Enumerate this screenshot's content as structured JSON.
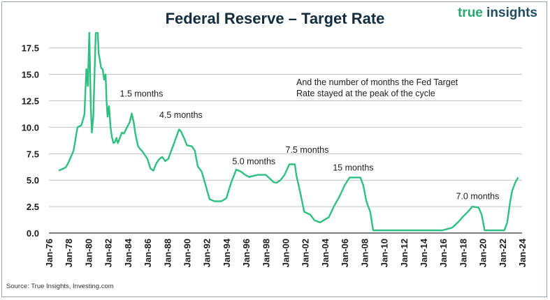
{
  "title": "Federal Reserve – Target Rate",
  "brand": {
    "part1": "true",
    "part2": "insights"
  },
  "source": "Source: True Insights, Investing.com",
  "note": "And the number of months the Fed Target Rate stayed at the peak of the cycle",
  "colors": {
    "line": "#2fbf7f",
    "grid": "#bcc5cc",
    "title": "#132c3d",
    "brand_green": "#2aa86f",
    "brand_dark": "#1f4e5e"
  },
  "chart_data": {
    "type": "line",
    "title": "Federal Reserve – Target Rate",
    "xlabel": "",
    "ylabel": "",
    "ylim": [
      0,
      19
    ],
    "xlim": [
      1976,
      2024
    ],
    "grid": true,
    "y_ticks": [
      "0.0",
      "2.5",
      "5.0",
      "7.5",
      "10.0",
      "12.5",
      "15.0",
      "17.5"
    ],
    "x_ticks": [
      "Jan-76",
      "Jan-78",
      "Jan-80",
      "Jan-82",
      "Jan-84",
      "Jan-86",
      "Jan-88",
      "Jan-90",
      "Jan-92",
      "Jan-94",
      "Jan-96",
      "Jan-98",
      "Jan-00",
      "Jan-02",
      "Jan-04",
      "Jan-06",
      "Jan-08",
      "Jan-10",
      "Jan-12",
      "Jan-14",
      "Jan-16",
      "Jan-18",
      "Jan-20",
      "Jan-22",
      "Jan-24"
    ],
    "annotations": [
      {
        "text": "1.5 months",
        "x": 1983.2,
        "y": 12.9
      },
      {
        "text": "4.5 months",
        "x": 1987.2,
        "y": 10.9
      },
      {
        "text": "5.0 months",
        "x": 1994.6,
        "y": 6.5
      },
      {
        "text": "7.5 months",
        "x": 2000.0,
        "y": 7.6
      },
      {
        "text": "15 months",
        "x": 2004.8,
        "y": 5.9
      },
      {
        "text": "7.0 months",
        "x": 2017.3,
        "y": 3.2
      }
    ],
    "series": [
      {
        "x": [
          1977.0,
          1977.7,
          1978.0,
          1978.5,
          1978.9,
          1979.3,
          1979.6,
          1979.8,
          1979.95,
          1980.1,
          1980.25,
          1980.35,
          1980.5,
          1980.75,
          1980.95,
          1981.05,
          1981.3,
          1981.45,
          1981.6,
          1981.75,
          1981.85,
          1981.95,
          1982.1,
          1982.25,
          1982.4,
          1982.55,
          1982.7,
          1982.85,
          1983.0,
          1983.4,
          1983.6,
          1984.2,
          1984.4,
          1984.6,
          1984.75,
          1984.9,
          1985.05,
          1985.2,
          1985.5,
          1986.0,
          1986.3,
          1986.6,
          1986.9,
          1987.2,
          1987.5,
          1987.8,
          1988.1,
          1988.5,
          1988.9,
          1989.2,
          1989.4,
          1989.7,
          1990.0,
          1990.5,
          1990.8,
          1991.1,
          1991.5,
          1991.9,
          1992.3,
          1992.8,
          1993.5,
          1994.0,
          1994.5,
          1994.8,
          1995.0,
          1995.5,
          1995.9,
          1996.3,
          1997.2,
          1998.0,
          1998.8,
          1999.1,
          1999.5,
          1999.9,
          2000.4,
          2000.95,
          2001.1,
          2001.5,
          2001.9,
          2002.5,
          2002.95,
          2003.5,
          2004.4,
          2004.9,
          2005.5,
          2006.0,
          2006.5,
          2007.6,
          2007.9,
          2008.2,
          2008.6,
          2008.9,
          2015.9,
          2016.9,
          2017.5,
          2017.95,
          2018.5,
          2018.95,
          2019.6,
          2019.9,
          2020.2,
          2022.2,
          2022.5,
          2022.8,
          2023.0,
          2023.3,
          2023.6
        ],
        "y": [
          5.9,
          6.2,
          6.7,
          7.8,
          10.0,
          10.2,
          11.2,
          15.5,
          13.9,
          19.0,
          12.0,
          9.5,
          11.0,
          18.9,
          19.0,
          17.0,
          15.6,
          15.5,
          14.5,
          15.0,
          12.5,
          11.0,
          12.0,
          10.0,
          9.0,
          8.5,
          8.6,
          9.0,
          8.5,
          9.5,
          9.4,
          10.5,
          11.3,
          10.5,
          9.5,
          8.8,
          8.2,
          8.0,
          7.7,
          7.0,
          6.1,
          5.9,
          6.6,
          7.0,
          7.2,
          6.8,
          7.0,
          8.0,
          9.0,
          9.8,
          9.6,
          9.0,
          8.3,
          8.2,
          7.8,
          6.3,
          5.8,
          4.5,
          3.2,
          3.0,
          3.0,
          3.3,
          4.8,
          5.5,
          6.0,
          5.8,
          5.5,
          5.3,
          5.5,
          5.5,
          4.8,
          4.75,
          5.0,
          5.5,
          6.5,
          6.5,
          5.5,
          3.8,
          2.0,
          1.75,
          1.2,
          1.0,
          1.5,
          2.5,
          3.5,
          4.5,
          5.25,
          5.25,
          4.5,
          3.0,
          2.0,
          0.25,
          0.25,
          0.5,
          1.0,
          1.5,
          2.0,
          2.5,
          2.4,
          1.75,
          0.25,
          0.25,
          1.0,
          3.0,
          4.0,
          4.75,
          5.25
        ]
      }
    ]
  }
}
